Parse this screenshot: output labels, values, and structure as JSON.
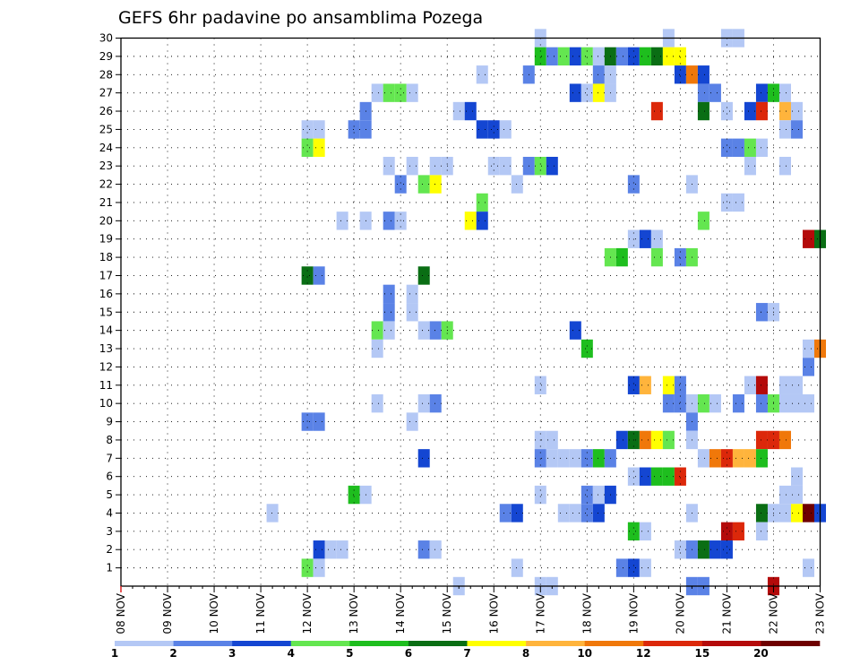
{
  "chart_data": {
    "type": "heatmap",
    "title": "GEFS 6hr padavine po ansamblima Pozega",
    "xlabel": "",
    "ylabel": "",
    "x_tick_labels": [
      "08 NOV",
      "09 NOV",
      "10 NOV",
      "11 NOV",
      "12 NOV",
      "13 NOV",
      "14 NOV",
      "15 NOV",
      "16 NOV",
      "17 NOV",
      "18 NOV",
      "19 NOV",
      "20 NOV",
      "21 NOV",
      "22 NOV",
      "23 NOV"
    ],
    "y_tick_labels": [
      "1",
      "2",
      "3",
      "4",
      "5",
      "6",
      "7",
      "8",
      "9",
      "10",
      "11",
      "12",
      "13",
      "14",
      "15",
      "16",
      "17",
      "18",
      "19",
      "20",
      "21",
      "22",
      "23",
      "24",
      "25",
      "26",
      "27",
      "28",
      "29",
      "30"
    ],
    "xlim": [
      0,
      60
    ],
    "ylim": [
      0,
      30
    ],
    "x_unit": "6-hour steps from 08 NOV 00Z",
    "y_unit": "ensemble member",
    "grid": true,
    "legend_position": "bottom",
    "legend": {
      "bounds": [
        "1",
        "2",
        "3",
        "4",
        "5",
        "6",
        "7",
        "8",
        "10",
        "12",
        "15",
        "20"
      ],
      "colors": [
        "#b4c8f5",
        "#5a82e6",
        "#1446d2",
        "#64e650",
        "#1ebe1e",
        "#0a6e14",
        "#ffff00",
        "#ffb43c",
        "#f0780a",
        "#dc280a",
        "#b40a0a",
        "#6e0000"
      ]
    },
    "cell_levels": "0=1-2 1=2-3 2=3-4 3=4-5 4=5-6 5=6-7 6=7-8 7=8-10 8=10-12 9=12-15 10=15-20 11=>20",
    "cells": [
      [
        30,
        0,
        36
      ],
      [
        30,
        0,
        47
      ],
      [
        30,
        0,
        52
      ],
      [
        30,
        0,
        53
      ],
      [
        29,
        4,
        36
      ],
      [
        29,
        1,
        37
      ],
      [
        29,
        3,
        38
      ],
      [
        29,
        2,
        39
      ],
      [
        29,
        3,
        40
      ],
      [
        29,
        0,
        41
      ],
      [
        29,
        5,
        42
      ],
      [
        29,
        1,
        43
      ],
      [
        29,
        2,
        44
      ],
      [
        29,
        4,
        45
      ],
      [
        29,
        5,
        46
      ],
      [
        29,
        6,
        47
      ],
      [
        29,
        6,
        48
      ],
      [
        28,
        0,
        31
      ],
      [
        28,
        1,
        35
      ],
      [
        28,
        1,
        41
      ],
      [
        28,
        0,
        42
      ],
      [
        28,
        2,
        48
      ],
      [
        28,
        8,
        49
      ],
      [
        28,
        2,
        50
      ],
      [
        27,
        0,
        22
      ],
      [
        27,
        3,
        23
      ],
      [
        27,
        3,
        24
      ],
      [
        27,
        0,
        25
      ],
      [
        27,
        2,
        39
      ],
      [
        27,
        0,
        40
      ],
      [
        27,
        6,
        41
      ],
      [
        27,
        0,
        42
      ],
      [
        27,
        1,
        50
      ],
      [
        27,
        1,
        51
      ],
      [
        27,
        2,
        55
      ],
      [
        27,
        4,
        56
      ],
      [
        27,
        0,
        57
      ],
      [
        26,
        1,
        21
      ],
      [
        26,
        0,
        29
      ],
      [
        26,
        2,
        30
      ],
      [
        26,
        9,
        46
      ],
      [
        26,
        5,
        50
      ],
      [
        26,
        0,
        52
      ],
      [
        26,
        2,
        54
      ],
      [
        26,
        9,
        55
      ],
      [
        26,
        7,
        57
      ],
      [
        26,
        0,
        58
      ],
      [
        25,
        0,
        16
      ],
      [
        25,
        0,
        17
      ],
      [
        25,
        1,
        20
      ],
      [
        25,
        1,
        21
      ],
      [
        25,
        2,
        31
      ],
      [
        25,
        2,
        32
      ],
      [
        25,
        0,
        33
      ],
      [
        25,
        0,
        57
      ],
      [
        25,
        1,
        58
      ],
      [
        24,
        3,
        16
      ],
      [
        24,
        6,
        17
      ],
      [
        24,
        1,
        52
      ],
      [
        24,
        1,
        53
      ],
      [
        24,
        3,
        54
      ],
      [
        24,
        0,
        55
      ],
      [
        23,
        0,
        23
      ],
      [
        23,
        0,
        25
      ],
      [
        23,
        0,
        27
      ],
      [
        23,
        0,
        28
      ],
      [
        23,
        0,
        32
      ],
      [
        23,
        0,
        33
      ],
      [
        23,
        1,
        35
      ],
      [
        23,
        3,
        36
      ],
      [
        23,
        2,
        37
      ],
      [
        23,
        0,
        54
      ],
      [
        23,
        0,
        57
      ],
      [
        22,
        1,
        24
      ],
      [
        22,
        3,
        26
      ],
      [
        22,
        6,
        27
      ],
      [
        22,
        0,
        34
      ],
      [
        22,
        1,
        44
      ],
      [
        22,
        0,
        49
      ],
      [
        21,
        3,
        31
      ],
      [
        21,
        0,
        52
      ],
      [
        21,
        0,
        53
      ],
      [
        20,
        0,
        19
      ],
      [
        20,
        0,
        21
      ],
      [
        20,
        1,
        23
      ],
      [
        20,
        0,
        24
      ],
      [
        20,
        6,
        30
      ],
      [
        20,
        2,
        31
      ],
      [
        20,
        3,
        50
      ],
      [
        19,
        0,
        44
      ],
      [
        19,
        2,
        45
      ],
      [
        19,
        0,
        46
      ],
      [
        19,
        10,
        59
      ],
      [
        19,
        5,
        60
      ],
      [
        18,
        3,
        42
      ],
      [
        18,
        4,
        43
      ],
      [
        18,
        3,
        46
      ],
      [
        18,
        1,
        48
      ],
      [
        18,
        3,
        49
      ],
      [
        17,
        5,
        16
      ],
      [
        17,
        1,
        17
      ],
      [
        17,
        5,
        26
      ],
      [
        16,
        1,
        23
      ],
      [
        16,
        0,
        25
      ],
      [
        15,
        1,
        23
      ],
      [
        15,
        0,
        25
      ],
      [
        15,
        1,
        55
      ],
      [
        15,
        0,
        56
      ],
      [
        14,
        3,
        22
      ],
      [
        14,
        0,
        23
      ],
      [
        14,
        0,
        26
      ],
      [
        14,
        1,
        27
      ],
      [
        14,
        3,
        28
      ],
      [
        14,
        2,
        39
      ],
      [
        13,
        0,
        22
      ],
      [
        13,
        4,
        40
      ],
      [
        13,
        0,
        59
      ],
      [
        13,
        8,
        60
      ],
      [
        12,
        1,
        59
      ],
      [
        11,
        0,
        36
      ],
      [
        11,
        2,
        44
      ],
      [
        11,
        7,
        45
      ],
      [
        11,
        6,
        47
      ],
      [
        11,
        1,
        48
      ],
      [
        11,
        0,
        54
      ],
      [
        11,
        10,
        55
      ],
      [
        11,
        0,
        57
      ],
      [
        11,
        0,
        58
      ],
      [
        10,
        0,
        22
      ],
      [
        10,
        0,
        26
      ],
      [
        10,
        1,
        27
      ],
      [
        10,
        1,
        47
      ],
      [
        10,
        1,
        48
      ],
      [
        10,
        0,
        49
      ],
      [
        10,
        3,
        50
      ],
      [
        10,
        0,
        51
      ],
      [
        10,
        1,
        53
      ],
      [
        10,
        1,
        55
      ],
      [
        10,
        3,
        56
      ],
      [
        10,
        0,
        57
      ],
      [
        10,
        0,
        58
      ],
      [
        10,
        0,
        59
      ],
      [
        9,
        1,
        16
      ],
      [
        9,
        1,
        17
      ],
      [
        9,
        0,
        25
      ],
      [
        9,
        1,
        49
      ],
      [
        8,
        0,
        36
      ],
      [
        8,
        0,
        37
      ],
      [
        8,
        2,
        43
      ],
      [
        8,
        5,
        44
      ],
      [
        8,
        8,
        45
      ],
      [
        8,
        6,
        46
      ],
      [
        8,
        3,
        47
      ],
      [
        8,
        0,
        49
      ],
      [
        8,
        9,
        55
      ],
      [
        8,
        9,
        56
      ],
      [
        8,
        8,
        57
      ],
      [
        7,
        2,
        26
      ],
      [
        7,
        1,
        36
      ],
      [
        7,
        0,
        37
      ],
      [
        7,
        0,
        38
      ],
      [
        7,
        0,
        39
      ],
      [
        7,
        1,
        40
      ],
      [
        7,
        4,
        41
      ],
      [
        7,
        1,
        42
      ],
      [
        7,
        0,
        50
      ],
      [
        7,
        8,
        51
      ],
      [
        7,
        9,
        52
      ],
      [
        7,
        7,
        53
      ],
      [
        7,
        7,
        54
      ],
      [
        7,
        4,
        55
      ],
      [
        6,
        0,
        44
      ],
      [
        6,
        2,
        45
      ],
      [
        6,
        4,
        46
      ],
      [
        6,
        4,
        47
      ],
      [
        6,
        9,
        48
      ],
      [
        6,
        0,
        58
      ],
      [
        5,
        4,
        20
      ],
      [
        5,
        0,
        21
      ],
      [
        5,
        0,
        36
      ],
      [
        5,
        1,
        40
      ],
      [
        5,
        0,
        41
      ],
      [
        5,
        2,
        42
      ],
      [
        5,
        0,
        57
      ],
      [
        5,
        0,
        58
      ],
      [
        4,
        0,
        13
      ],
      [
        4,
        1,
        33
      ],
      [
        4,
        2,
        34
      ],
      [
        4,
        0,
        38
      ],
      [
        4,
        0,
        39
      ],
      [
        4,
        1,
        40
      ],
      [
        4,
        2,
        41
      ],
      [
        4,
        0,
        49
      ],
      [
        4,
        5,
        55
      ],
      [
        4,
        0,
        56
      ],
      [
        4,
        0,
        57
      ],
      [
        4,
        6,
        58
      ],
      [
        4,
        11,
        59
      ],
      [
        4,
        2,
        60
      ],
      [
        3,
        4,
        44
      ],
      [
        3,
        0,
        45
      ],
      [
        3,
        10,
        52
      ],
      [
        3,
        9,
        53
      ],
      [
        3,
        0,
        55
      ],
      [
        2,
        2,
        17
      ],
      [
        2,
        0,
        18
      ],
      [
        2,
        0,
        19
      ],
      [
        2,
        1,
        26
      ],
      [
        2,
        0,
        27
      ],
      [
        2,
        0,
        48
      ],
      [
        2,
        1,
        49
      ],
      [
        2,
        5,
        50
      ],
      [
        2,
        2,
        51
      ],
      [
        2,
        2,
        52
      ],
      [
        1,
        3,
        16
      ],
      [
        1,
        0,
        17
      ],
      [
        1,
        0,
        34
      ],
      [
        1,
        1,
        43
      ],
      [
        1,
        2,
        44
      ],
      [
        1,
        0,
        45
      ],
      [
        1,
        0,
        59
      ],
      [
        0,
        0,
        29
      ],
      [
        0,
        0,
        36
      ],
      [
        0,
        0,
        37
      ],
      [
        0,
        1,
        49
      ],
      [
        0,
        1,
        50
      ],
      [
        0,
        10,
        56
      ]
    ]
  }
}
